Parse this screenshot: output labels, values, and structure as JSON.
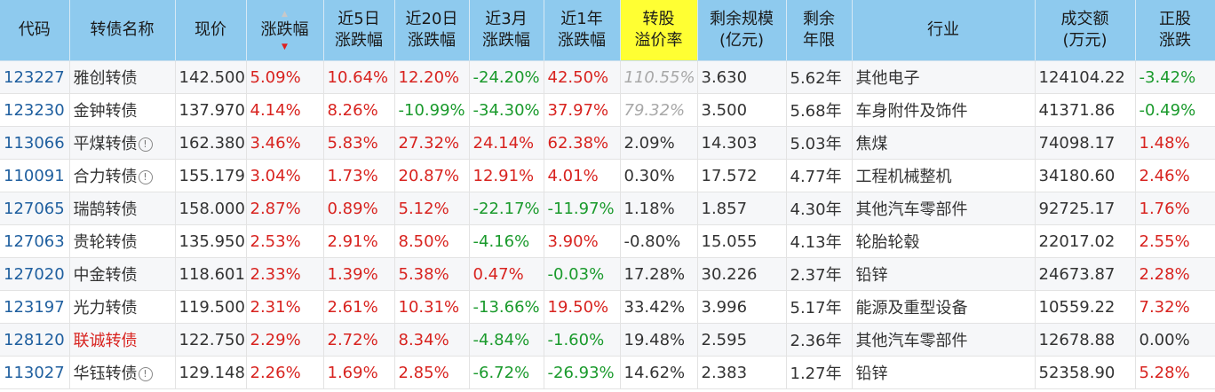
{
  "headers": [
    "代码",
    "转债名称",
    "现价",
    "涨跌幅",
    "近5日\n涨跌幅",
    "近20日\n涨跌幅",
    "近3月\n涨跌幅",
    "近1年\n涨跌幅",
    "转股\n溢价率",
    "剩余规模\n(亿元)",
    "剩余\n年限",
    "行业",
    "成交额\n(万元)",
    "正股\n涨跌"
  ],
  "sort_icons": {
    "asc": "▲",
    "desc": "▼"
  },
  "info_icon": "!",
  "highlight_color": "#ffff33",
  "rows": [
    {
      "code": "123227",
      "name": "雅创转债",
      "info": false,
      "name_red": false,
      "price": "142.500",
      "chg": "5.09%",
      "chg5": "10.64%",
      "chg20": "12.20%",
      "chg3m": "-24.20%",
      "chg1y": "42.50%",
      "premium": "110.55%",
      "premium_muted": true,
      "size": "3.630",
      "years": "5.62年",
      "industry": "其他电子",
      "volume": "124104.22",
      "stock_chg": "-3.42%"
    },
    {
      "code": "123230",
      "name": "金钟转债",
      "info": false,
      "name_red": false,
      "price": "137.970",
      "chg": "4.14%",
      "chg5": "8.26%",
      "chg20": "-10.99%",
      "chg3m": "-34.30%",
      "chg1y": "37.97%",
      "premium": "79.32%",
      "premium_muted": true,
      "size": "3.500",
      "years": "5.68年",
      "industry": "车身附件及饰件",
      "volume": "41371.86",
      "stock_chg": "-0.49%"
    },
    {
      "code": "113066",
      "name": "平煤转债",
      "info": true,
      "name_red": false,
      "price": "162.380",
      "chg": "3.46%",
      "chg5": "5.83%",
      "chg20": "27.32%",
      "chg3m": "24.14%",
      "chg1y": "62.38%",
      "premium": "2.09%",
      "premium_muted": false,
      "size": "14.303",
      "years": "5.03年",
      "industry": "焦煤",
      "volume": "74098.17",
      "stock_chg": "1.48%"
    },
    {
      "code": "110091",
      "name": "合力转债",
      "info": true,
      "name_red": false,
      "price": "155.179",
      "chg": "3.04%",
      "chg5": "1.73%",
      "chg20": "20.87%",
      "chg3m": "12.91%",
      "chg1y": "4.01%",
      "premium": "0.30%",
      "premium_muted": false,
      "size": "17.572",
      "years": "4.77年",
      "industry": "工程机械整机",
      "volume": "34180.60",
      "stock_chg": "2.46%"
    },
    {
      "code": "127065",
      "name": "瑞鹄转债",
      "info": false,
      "name_red": false,
      "price": "158.000",
      "chg": "2.87%",
      "chg5": "0.89%",
      "chg20": "5.12%",
      "chg3m": "-22.17%",
      "chg1y": "-11.97%",
      "premium": "1.18%",
      "premium_muted": false,
      "size": "1.857",
      "years": "4.30年",
      "industry": "其他汽车零部件",
      "volume": "92725.17",
      "stock_chg": "1.76%"
    },
    {
      "code": "127063",
      "name": "贵轮转债",
      "info": false,
      "name_red": false,
      "price": "135.950",
      "chg": "2.53%",
      "chg5": "2.91%",
      "chg20": "8.50%",
      "chg3m": "-4.16%",
      "chg1y": "3.90%",
      "premium": "-0.80%",
      "premium_muted": false,
      "size": "15.055",
      "years": "4.13年",
      "industry": "轮胎轮毂",
      "volume": "22017.02",
      "stock_chg": "2.55%"
    },
    {
      "code": "127020",
      "name": "中金转债",
      "info": false,
      "name_red": false,
      "price": "118.601",
      "chg": "2.33%",
      "chg5": "1.39%",
      "chg20": "5.38%",
      "chg3m": "0.47%",
      "chg1y": "-0.03%",
      "premium": "17.28%",
      "premium_muted": false,
      "size": "30.226",
      "years": "2.37年",
      "industry": "铅锌",
      "volume": "24673.87",
      "stock_chg": "2.28%"
    },
    {
      "code": "123197",
      "name": "光力转债",
      "info": false,
      "name_red": false,
      "price": "119.500",
      "chg": "2.31%",
      "chg5": "2.61%",
      "chg20": "10.31%",
      "chg3m": "-13.66%",
      "chg1y": "19.50%",
      "premium": "33.42%",
      "premium_muted": false,
      "size": "3.996",
      "years": "5.17年",
      "industry": "能源及重型设备",
      "volume": "10559.22",
      "stock_chg": "7.32%"
    },
    {
      "code": "128120",
      "name": "联诚转债",
      "info": false,
      "name_red": true,
      "price": "122.750",
      "chg": "2.29%",
      "chg5": "2.72%",
      "chg20": "8.34%",
      "chg3m": "-4.84%",
      "chg1y": "-1.60%",
      "premium": "19.48%",
      "premium_muted": false,
      "size": "2.595",
      "years": "2.36年",
      "industry": "其他汽车零部件",
      "volume": "12678.88",
      "stock_chg": "0.00%"
    },
    {
      "code": "113027",
      "name": "华钰转债",
      "info": true,
      "name_red": false,
      "price": "129.148",
      "chg": "2.26%",
      "chg5": "1.69%",
      "chg20": "2.85%",
      "chg3m": "-6.72%",
      "chg1y": "-26.93%",
      "premium": "14.62%",
      "premium_muted": false,
      "size": "2.383",
      "years": "1.27年",
      "industry": "铅锌",
      "volume": "52358.90",
      "stock_chg": "5.28%"
    }
  ]
}
